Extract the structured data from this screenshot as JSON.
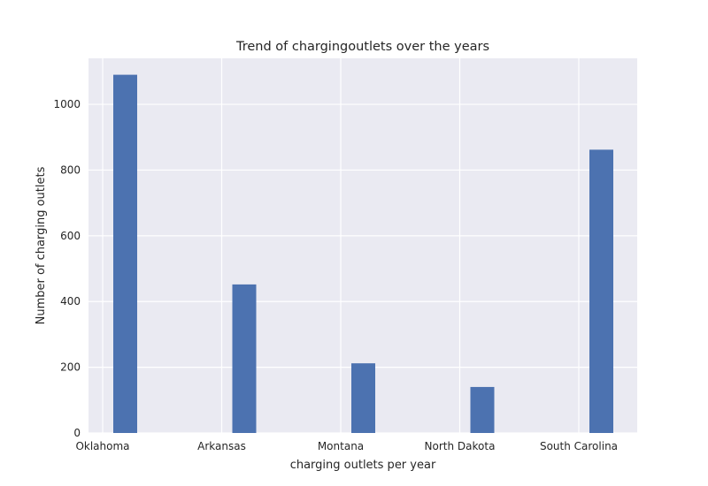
{
  "chart_data": {
    "type": "bar",
    "title": "Trend of chargingoutlets over the years",
    "xlabel": "charging outlets per year",
    "ylabel": "Number of charging outlets",
    "categories": [
      "Oklahoma",
      "Arkansas",
      "Montana",
      "North Dakota",
      "South Carolina"
    ],
    "values": [
      1090,
      452,
      212,
      140,
      862
    ],
    "ylim": [
      0,
      1140
    ],
    "yticks": [
      0,
      200,
      400,
      600,
      800,
      1000
    ],
    "grid": true,
    "legend": "none",
    "colors": {
      "bar": "#4c72b0",
      "plot_background": "#eaeaf2",
      "grid": "#ffffff",
      "text": "#262626"
    }
  }
}
